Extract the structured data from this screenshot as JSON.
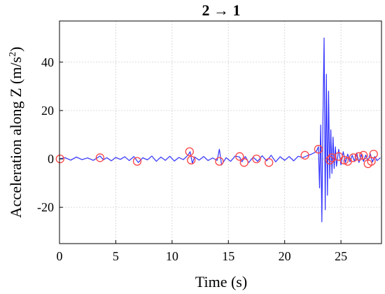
{
  "chart_data": {
    "type": "line",
    "title": "2 → 1",
    "xlabel": "Time (s)",
    "ylabel_text": "Acceleration along Z (m/s",
    "ylabel_sup": "2",
    "ylabel_close": ")",
    "xlim": [
      0,
      28.6
    ],
    "ylim": [
      -35,
      57
    ],
    "xticks": [
      0,
      5,
      10,
      15,
      20,
      25
    ],
    "xtick_labels": [
      "0",
      "5",
      "10",
      "15",
      "20",
      "25"
    ],
    "yticks": [
      -20,
      0,
      20,
      40
    ],
    "ytick_labels": [
      "-20",
      "0",
      "20",
      "40"
    ],
    "grid": true,
    "series": [
      {
        "color": "#3333ff",
        "x": [
          0,
          0.5,
          1.0,
          1.5,
          2.0,
          2.5,
          3.0,
          3.3,
          3.6,
          3.9,
          4.2,
          4.6,
          5.0,
          5.4,
          5.8,
          6.2,
          6.6,
          7.0,
          7.4,
          7.8,
          8.2,
          8.6,
          9.0,
          9.4,
          9.8,
          10.2,
          10.6,
          11.0,
          11.4,
          11.6,
          11.8,
          12.0,
          12.4,
          12.8,
          13.2,
          13.6,
          14.0,
          14.2,
          14.4,
          14.8,
          15.2,
          15.6,
          16.0,
          16.2,
          16.5,
          16.8,
          17.2,
          17.6,
          18.0,
          18.4,
          18.8,
          19.2,
          19.6,
          20.0,
          20.4,
          20.8,
          21.2,
          21.6,
          22.0,
          22.4,
          22.8,
          23.0,
          23.1,
          23.2,
          23.3,
          23.4,
          23.5,
          23.6,
          23.7,
          23.8,
          23.9,
          24.0,
          24.1,
          24.2,
          24.3,
          24.4,
          24.5,
          24.6,
          24.8,
          25.0,
          25.2,
          25.4,
          25.6,
          25.8,
          26.0,
          26.2,
          26.4,
          26.6,
          26.8,
          27.0,
          27.2,
          27.4,
          27.6,
          27.8,
          28.0,
          28.2,
          28.5
        ],
        "y": [
          0,
          0.5,
          -0.5,
          0.8,
          -0.3,
          0.4,
          -0.6,
          0.3,
          1.2,
          -0.4,
          0.5,
          -0.8,
          0.6,
          -0.2,
          0.9,
          -0.7,
          1.0,
          -1.5,
          0.5,
          -0.4,
          1.2,
          -1.0,
          0.8,
          -0.6,
          1.1,
          -0.9,
          0.6,
          -0.3,
          1.5,
          3.0,
          -1.8,
          0.8,
          -0.5,
          1.0,
          -0.7,
          0.4,
          -0.6,
          4.0,
          -2.5,
          0.5,
          -1.0,
          1.2,
          0.8,
          -1.2,
          1.0,
          -1.5,
          0.7,
          -1.0,
          1.3,
          -0.8,
          1.5,
          -1.2,
          0.9,
          -0.6,
          1.0,
          -0.8,
          1.1,
          0.5,
          1.3,
          2.0,
          3.0,
          5.0,
          -12.0,
          14.0,
          -26.0,
          18.0,
          50.0,
          -21.0,
          35.0,
          -15.0,
          28.0,
          -8.0,
          12.0,
          -6.0,
          9.0,
          -4.0,
          5.0,
          -3.0,
          4.0,
          -2.5,
          3.0,
          -1.5,
          2.0,
          -1.2,
          1.5,
          -1.0,
          2.5,
          -1.5,
          1.8,
          -1.0,
          1.6,
          -0.8,
          2.2,
          -1.3,
          1.0,
          -0.7,
          0.5
        ]
      }
    ],
    "markers": {
      "color": "#ff4444",
      "x": [
        0.05,
        3.6,
        6.9,
        11.55,
        11.7,
        14.2,
        16.0,
        16.4,
        17.5,
        18.6,
        21.8,
        23.0,
        24.0,
        24.2,
        24.8,
        25.3,
        25.6,
        26.1,
        26.6,
        27.0,
        27.4,
        27.7,
        27.9
      ],
      "y": [
        0.0,
        0.5,
        -1.0,
        3.0,
        -0.5,
        -1.0,
        1.0,
        -1.5,
        0.0,
        -1.5,
        1.5,
        4.0,
        -0.5,
        0.5,
        1.0,
        -0.5,
        -1.0,
        0.5,
        1.0,
        1.5,
        -2.0,
        -1.0,
        2.0
      ]
    }
  }
}
